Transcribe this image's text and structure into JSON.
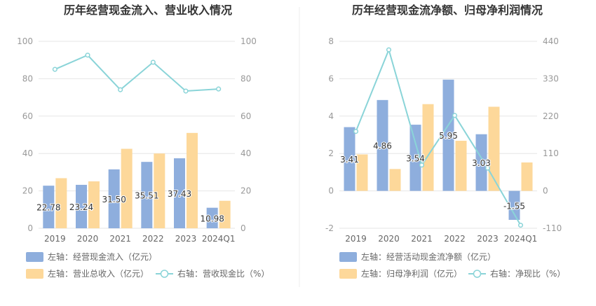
{
  "chart_data": [
    {
      "type": "bar",
      "title": "历年经营现金流入、营业收入情况",
      "categories": [
        "2019",
        "2020",
        "2021",
        "2022",
        "2023",
        "2024Q1"
      ],
      "y_left": [
        0,
        100
      ],
      "y_right": [
        0,
        100
      ],
      "left_ticks": [
        "0",
        "20",
        "40",
        "60",
        "80",
        "100"
      ],
      "right_ticks": [
        "0",
        "20",
        "40",
        "60",
        "80",
        "100"
      ],
      "series": [
        {
          "name": "左轴：经营现金流入（亿元）",
          "kind": "bar",
          "axis": "left",
          "color": "#8eaedd",
          "values": [
            22.78,
            23.24,
            31.5,
            35.51,
            37.43,
            10.98
          ],
          "labels": [
            "22.78",
            "23.24",
            "31.50",
            "35.51",
            "37.43",
            "10.98"
          ]
        },
        {
          "name": "左轴：营业总收入（亿元）",
          "kind": "bar",
          "axis": "left",
          "color": "#fdd89a",
          "values": [
            26.8,
            25.1,
            42.5,
            40.0,
            51.0,
            14.7
          ]
        },
        {
          "name": "右轴：营收现金比（%）",
          "kind": "line",
          "axis": "right",
          "color": "#8ad4d8",
          "values": [
            85.0,
            92.6,
            74.1,
            88.8,
            73.4,
            74.5
          ]
        }
      ]
    },
    {
      "type": "bar",
      "title": "历年经营现金流净额、归母净利润情况",
      "categories": [
        "2019",
        "2020",
        "2021",
        "2022",
        "2023",
        "2024Q1"
      ],
      "y_left": [
        -2,
        8
      ],
      "y_right": [
        -110,
        440
      ],
      "left_ticks": [
        "-2",
        "0",
        "2",
        "4",
        "6",
        "8"
      ],
      "right_ticks": [
        "-110",
        "0",
        "110",
        "220",
        "330",
        "440"
      ],
      "series": [
        {
          "name": "左轴：经营活动现金流净额（亿元）",
          "kind": "bar",
          "axis": "left",
          "color": "#8eaedd",
          "values": [
            3.41,
            4.86,
            3.54,
            5.95,
            3.03,
            -1.55
          ],
          "labels": [
            "3.41",
            "4.86",
            "3.54",
            "5.95",
            "3.03",
            "-1.55"
          ]
        },
        {
          "name": "左轴：归母净利润（亿元）",
          "kind": "bar",
          "axis": "left",
          "color": "#fdd89a",
          "values": [
            1.95,
            1.17,
            4.64,
            2.68,
            4.5,
            1.52
          ]
        },
        {
          "name": "右轴：净现比（%）",
          "kind": "line",
          "axis": "right",
          "color": "#8ad4d8",
          "values": [
            175,
            415,
            76,
            222,
            67,
            -101
          ]
        }
      ]
    }
  ]
}
